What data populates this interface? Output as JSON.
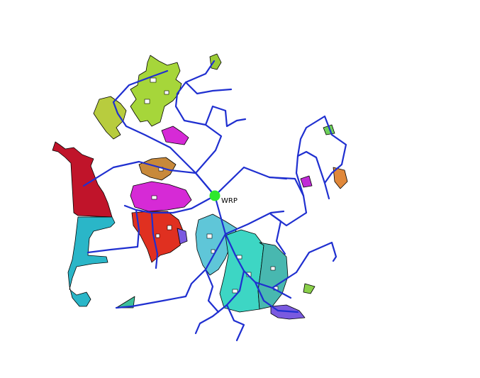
{
  "plant": {
    "label": "WRP",
    "color": "#2ee82e"
  },
  "colors": {
    "pipe": "#1f2fd0",
    "zone_dark_red": "#c0142a",
    "zone_cyan": "#2ab6c8",
    "zone_lime": "#a6d63a",
    "zone_olive": "#b8cc3e",
    "zone_brown": "#c8893a",
    "zone_magenta": "#d62ad6",
    "zone_red": "#e03020",
    "zone_teal": "#3dd6c4",
    "zone_sky": "#5fc6d8",
    "zone_purple": "#7a5ae0"
  }
}
